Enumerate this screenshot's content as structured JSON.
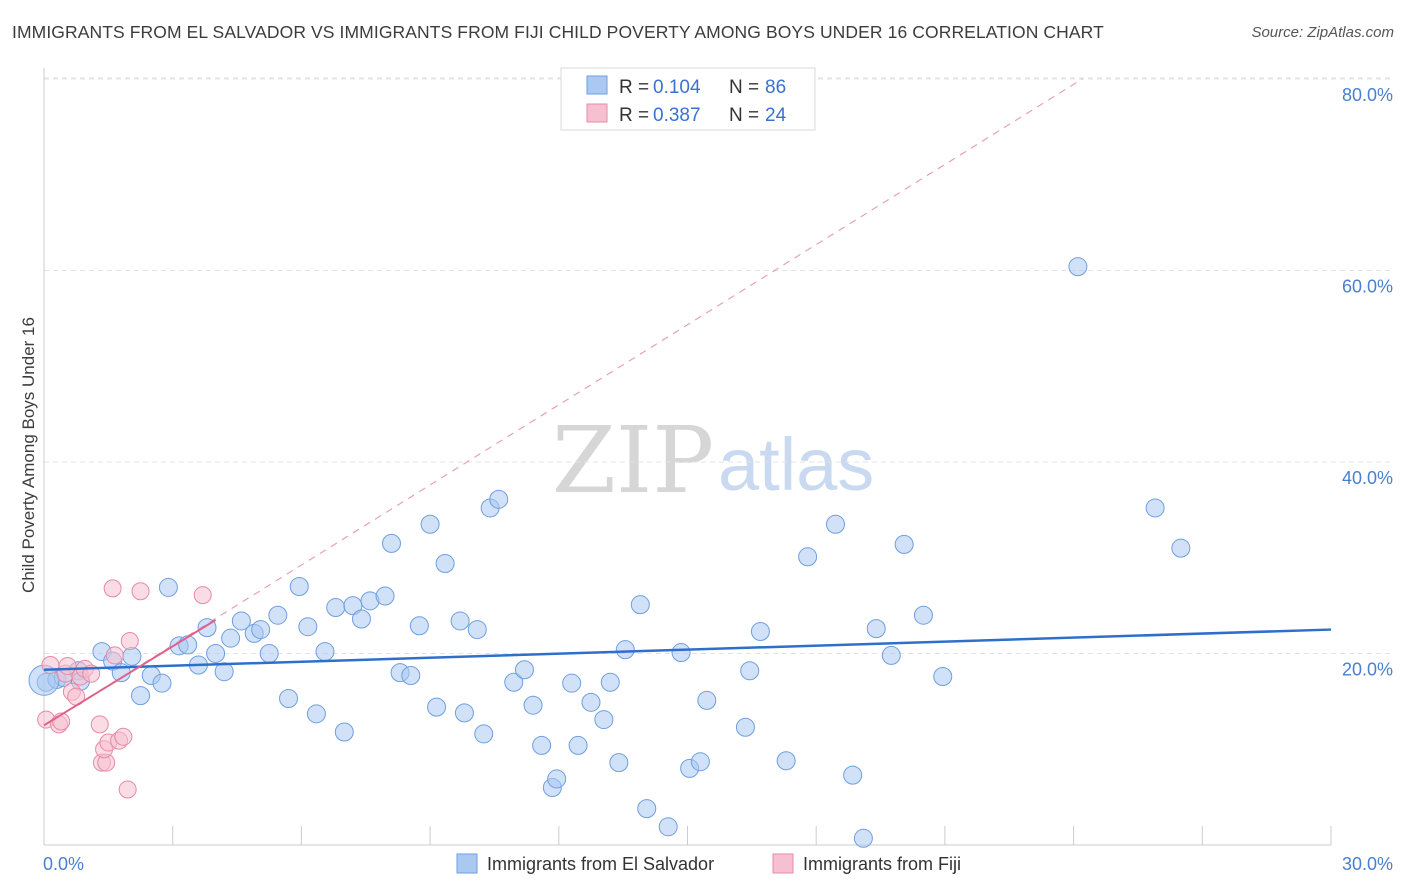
{
  "header": {
    "title": "IMMIGRANTS FROM EL SALVADOR VS IMMIGRANTS FROM FIJI CHILD POVERTY AMONG BOYS UNDER 16 CORRELATION CHART",
    "source": "Source: ZipAtlas.com"
  },
  "watermark": {
    "zip": "ZIP",
    "atlas": "atlas"
  },
  "legend": {
    "rows": [
      {
        "r_label": "R = ",
        "r_value": "0.104",
        "n_label": "N = ",
        "n_value": "86",
        "color": "#a9c8f2"
      },
      {
        "r_label": "R = ",
        "r_value": "0.387",
        "n_label": "N = ",
        "n_value": "24",
        "color": "#f6b9cc"
      }
    ]
  },
  "bottom_legend": {
    "items": [
      {
        "label": "Immigrants from El Salvador",
        "color": "#a9c8f2"
      },
      {
        "label": "Immigrants from Fiji",
        "color": "#f6b9cc"
      }
    ]
  },
  "colors": {
    "blue_fill": "#a9c8f2",
    "blue_stroke": "#6f9fdf",
    "blue_line": "#2f6fcc",
    "pink_fill": "#f6c0d0",
    "pink_stroke": "#e88aa6",
    "pink_line": "#e0608a"
  },
  "chart_data": {
    "type": "scatter",
    "title": "IMMIGRANTS FROM EL SALVADOR VS IMMIGRANTS FROM FIJI CHILD POVERTY AMONG BOYS UNDER 16 CORRELATION CHART",
    "xlabel": "",
    "ylabel": "Child Poverty Among Boys Under 16",
    "xlim": [
      0,
      30
    ],
    "ylim": [
      0,
      82
    ],
    "x_tick_labels": [
      {
        "value": 0,
        "label": "0.0%"
      },
      {
        "value": 30,
        "label": "30.0%"
      }
    ],
    "y_tick_labels": [
      {
        "value": 20,
        "label": "20.0%"
      },
      {
        "value": 40,
        "label": "40.0%"
      },
      {
        "value": 60,
        "label": "60.0%"
      },
      {
        "value": 80,
        "label": "80.0%"
      }
    ],
    "grid": true,
    "legend_position": "top-center",
    "series": [
      {
        "name": "Immigrants from El Salvador",
        "color": "#a9c8f2",
        "trend": {
          "x": [
            0,
            30
          ],
          "y": [
            18.3,
            22.5
          ]
        },
        "points": [
          [
            0.05,
            17.0
          ],
          [
            0.3,
            17.3
          ],
          [
            0.45,
            17.5
          ],
          [
            0.8,
            18.2
          ],
          [
            0.85,
            17.1
          ],
          [
            1.35,
            20.2
          ],
          [
            1.6,
            19.2
          ],
          [
            1.8,
            18.0
          ],
          [
            2.05,
            19.7
          ],
          [
            2.25,
            15.6
          ],
          [
            2.5,
            17.7
          ],
          [
            2.75,
            16.9
          ],
          [
            2.9,
            26.9
          ],
          [
            3.15,
            20.8
          ],
          [
            3.35,
            20.9
          ],
          [
            3.6,
            18.8
          ],
          [
            3.8,
            22.7
          ],
          [
            4.0,
            20.0
          ],
          [
            4.2,
            18.1
          ],
          [
            4.35,
            21.6
          ],
          [
            4.6,
            23.4
          ],
          [
            4.9,
            22.1
          ],
          [
            5.05,
            22.5
          ],
          [
            5.25,
            20.0
          ],
          [
            5.45,
            24.0
          ],
          [
            5.7,
            15.3
          ],
          [
            5.95,
            27.0
          ],
          [
            6.15,
            22.8
          ],
          [
            6.35,
            13.7
          ],
          [
            6.55,
            20.2
          ],
          [
            6.8,
            24.8
          ],
          [
            7.0,
            11.8
          ],
          [
            7.2,
            25.0
          ],
          [
            7.4,
            23.6
          ],
          [
            7.6,
            25.5
          ],
          [
            7.95,
            26.0
          ],
          [
            8.1,
            31.5
          ],
          [
            8.3,
            18.0
          ],
          [
            8.55,
            17.7
          ],
          [
            8.75,
            22.9
          ],
          [
            9.0,
            33.5
          ],
          [
            9.15,
            14.4
          ],
          [
            9.35,
            29.4
          ],
          [
            9.7,
            23.4
          ],
          [
            9.8,
            13.8
          ],
          [
            10.1,
            22.5
          ],
          [
            10.25,
            11.6
          ],
          [
            10.4,
            35.2
          ],
          [
            10.6,
            36.1
          ],
          [
            10.95,
            17.0
          ],
          [
            11.2,
            18.3
          ],
          [
            11.4,
            14.6
          ],
          [
            11.6,
            10.4
          ],
          [
            11.85,
            6.0
          ],
          [
            11.95,
            6.9
          ],
          [
            12.3,
            16.9
          ],
          [
            12.45,
            10.4
          ],
          [
            12.75,
            14.9
          ],
          [
            13.05,
            13.1
          ],
          [
            13.2,
            17.0
          ],
          [
            13.4,
            8.6
          ],
          [
            13.55,
            20.4
          ],
          [
            13.9,
            25.1
          ],
          [
            14.05,
            3.8
          ],
          [
            14.55,
            1.9
          ],
          [
            14.85,
            20.1
          ],
          [
            15.05,
            8.0
          ],
          [
            15.3,
            8.7
          ],
          [
            15.45,
            15.1
          ],
          [
            16.35,
            12.3
          ],
          [
            16.45,
            18.2
          ],
          [
            16.7,
            22.3
          ],
          [
            17.3,
            8.8
          ],
          [
            17.8,
            30.1
          ],
          [
            18.45,
            33.5
          ],
          [
            18.85,
            7.3
          ],
          [
            19.1,
            0.7
          ],
          [
            19.4,
            22.6
          ],
          [
            19.75,
            19.8
          ],
          [
            20.05,
            31.4
          ],
          [
            20.5,
            24.0
          ],
          [
            20.95,
            17.6
          ],
          [
            24.1,
            60.4
          ],
          [
            25.9,
            35.2
          ],
          [
            26.5,
            31.0
          ],
          [
            0.0,
            17.2
          ]
        ]
      },
      {
        "name": "Immigrants from Fiji",
        "color": "#f6b9cc",
        "trend": {
          "x": [
            0,
            4.0
          ],
          "y": [
            12.5,
            23.5
          ]
        },
        "trend_extended": {
          "x": [
            0,
            24.2
          ],
          "y": [
            12.5,
            80.0
          ]
        },
        "points": [
          [
            0.05,
            13.1
          ],
          [
            0.15,
            18.8
          ],
          [
            0.35,
            12.6
          ],
          [
            0.4,
            12.9
          ],
          [
            0.5,
            17.9
          ],
          [
            0.55,
            18.7
          ],
          [
            0.65,
            16.0
          ],
          [
            0.75,
            15.5
          ],
          [
            0.85,
            17.6
          ],
          [
            0.95,
            18.4
          ],
          [
            1.1,
            17.9
          ],
          [
            1.3,
            12.6
          ],
          [
            1.35,
            8.6
          ],
          [
            1.45,
            8.6
          ],
          [
            1.4,
            10.0
          ],
          [
            1.5,
            10.7
          ],
          [
            1.6,
            26.8
          ],
          [
            1.65,
            19.8
          ],
          [
            1.75,
            10.9
          ],
          [
            1.85,
            11.3
          ],
          [
            1.95,
            5.8
          ],
          [
            2.0,
            21.3
          ],
          [
            2.25,
            26.5
          ],
          [
            3.7,
            26.1
          ]
        ]
      }
    ]
  }
}
